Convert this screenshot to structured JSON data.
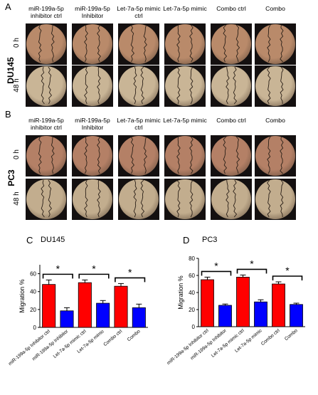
{
  "panel_A": {
    "letter": "A",
    "cell_line": "DU145",
    "row_labels": [
      "0 h",
      "48 h"
    ],
    "column_headers": [
      "miR-199a-5p inhibitor ctrl",
      "miR-199a-5p Inhibitor",
      "Let-7a-5p mimic ctrl",
      "Let-7a-5p mimic",
      "Combo ctrl",
      "Combo"
    ]
  },
  "panel_B": {
    "letter": "B",
    "cell_line": "PC3",
    "row_labels": [
      "0 h",
      "48 h"
    ],
    "column_headers": [
      "miR-199a-5p inhibitor ctrl",
      "miR-199a-5p Inhibitor",
      "Let-7a-5p mimic ctrl",
      "Let-7a-5p mimic",
      "Combo ctrl",
      "Combo"
    ]
  },
  "panel_C": {
    "letter": "C"
  },
  "panel_D": {
    "letter": "D"
  },
  "colors": {
    "ctrl_bar": "#ff0000",
    "treated_bar": "#0000ff",
    "du145_0h_well": "#b98a6a",
    "du145_48h_well": "#c9b596",
    "pc3_0h_well": "#b48066",
    "pc3_48h_well": "#c2ad8e"
  },
  "chart_data": [
    {
      "type": "bar",
      "title": "DU145",
      "ylabel": "Migration %",
      "ylim": [
        0,
        70
      ],
      "yticks": [
        0,
        20,
        40,
        60
      ],
      "categories": [
        "miR-199a-5p Inhibitor ctrl",
        "miR-199a-5p Inhibitor",
        "Let-7a-5p mimic ctrl",
        "Let-7a-5p mimic",
        "Combo ctrl",
        "Combo"
      ],
      "values": [
        48,
        18.5,
        50,
        27,
        46,
        22
      ],
      "errors": [
        5,
        3.5,
        3,
        3,
        3,
        4
      ],
      "bar_colors": [
        "red",
        "blue",
        "red",
        "blue",
        "red",
        "blue"
      ],
      "significance": [
        {
          "from": 0,
          "to": 1,
          "label": "*"
        },
        {
          "from": 2,
          "to": 3,
          "label": "*"
        },
        {
          "from": 4,
          "to": 5,
          "label": "*"
        }
      ],
      "grid": false
    },
    {
      "type": "bar",
      "title": "PC3",
      "ylabel": "Migration %",
      "ylim": [
        0,
        80
      ],
      "yticks": [
        0,
        20,
        40,
        60,
        80
      ],
      "categories": [
        "miR-199a-5p Inhibitor ctrl",
        "miR-199a-5p Inhibitor",
        "Let-7a-5p mimic ctrl",
        "Let-7a-5p mimic",
        "Combo ctrl",
        "Combo"
      ],
      "values": [
        55,
        25,
        58,
        29,
        50,
        26
      ],
      "errors": [
        3,
        1.5,
        2.5,
        2.5,
        2.5,
        1.5
      ],
      "bar_colors": [
        "red",
        "blue",
        "red",
        "blue",
        "red",
        "blue"
      ],
      "significance": [
        {
          "from": 0,
          "to": 1,
          "label": "*"
        },
        {
          "from": 2,
          "to": 3,
          "label": "*"
        },
        {
          "from": 4,
          "to": 5,
          "label": "*"
        }
      ],
      "grid": false
    }
  ]
}
